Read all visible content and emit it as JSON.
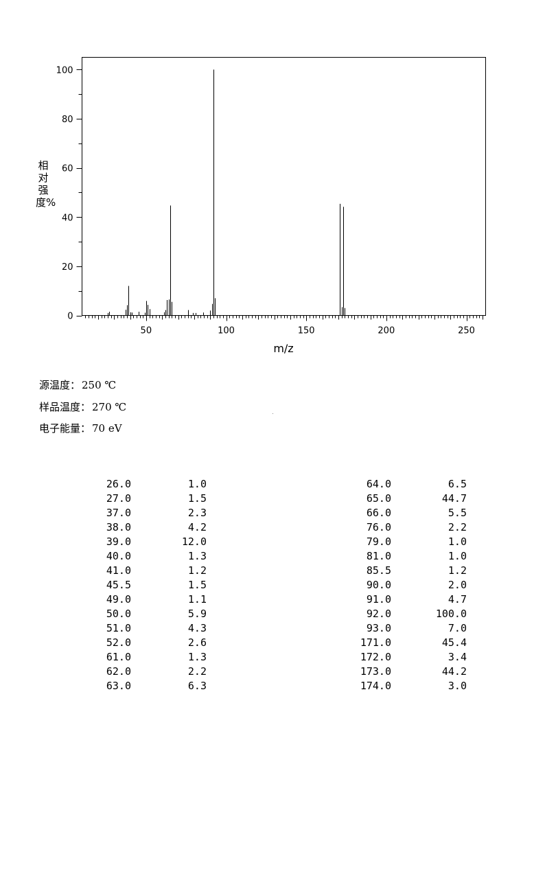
{
  "chart_data": {
    "type": "bar",
    "xlabel": "m/z",
    "ylabel": "相对强度%",
    "xlim": [
      10,
      262
    ],
    "ylim": [
      0,
      105
    ],
    "xticks": [
      50,
      100,
      150,
      200,
      250
    ],
    "yticks": [
      0,
      20,
      40,
      60,
      80,
      100
    ],
    "grid": false,
    "peaks": [
      {
        "x": 26.0,
        "y": 1.0
      },
      {
        "x": 27.0,
        "y": 1.5
      },
      {
        "x": 37.0,
        "y": 2.3
      },
      {
        "x": 38.0,
        "y": 4.2
      },
      {
        "x": 39.0,
        "y": 12.0
      },
      {
        "x": 40.0,
        "y": 1.3
      },
      {
        "x": 41.0,
        "y": 1.2
      },
      {
        "x": 45.5,
        "y": 1.5
      },
      {
        "x": 49.0,
        "y": 1.1
      },
      {
        "x": 50.0,
        "y": 5.9
      },
      {
        "x": 51.0,
        "y": 4.3
      },
      {
        "x": 52.0,
        "y": 2.6
      },
      {
        "x": 61.0,
        "y": 1.3
      },
      {
        "x": 62.0,
        "y": 2.2
      },
      {
        "x": 63.0,
        "y": 6.3
      },
      {
        "x": 64.0,
        "y": 6.5
      },
      {
        "x": 65.0,
        "y": 44.7
      },
      {
        "x": 66.0,
        "y": 5.5
      },
      {
        "x": 76.0,
        "y": 2.2
      },
      {
        "x": 79.0,
        "y": 1.0
      },
      {
        "x": 81.0,
        "y": 1.0
      },
      {
        "x": 85.5,
        "y": 1.2
      },
      {
        "x": 90.0,
        "y": 2.0
      },
      {
        "x": 91.0,
        "y": 4.7
      },
      {
        "x": 92.0,
        "y": 100.0
      },
      {
        "x": 93.0,
        "y": 7.0
      },
      {
        "x": 171.0,
        "y": 45.4
      },
      {
        "x": 172.0,
        "y": 3.4
      },
      {
        "x": 173.0,
        "y": 44.2
      },
      {
        "x": 174.0,
        "y": 3.0
      }
    ]
  },
  "conditions": [
    {
      "label": "源温度：",
      "value": "250 ℃"
    },
    {
      "label": "样品温度：",
      "value": "270 ℃"
    },
    {
      "label": "电子能量：",
      "value": "70 eV"
    }
  ],
  "peak_table": {
    "left": [
      [
        "26.0",
        "1.0"
      ],
      [
        "27.0",
        "1.5"
      ],
      [
        "37.0",
        "2.3"
      ],
      [
        "38.0",
        "4.2"
      ],
      [
        "39.0",
        "12.0"
      ],
      [
        "40.0",
        "1.3"
      ],
      [
        "41.0",
        "1.2"
      ],
      [
        "45.5",
        "1.5"
      ],
      [
        "49.0",
        "1.1"
      ],
      [
        "50.0",
        "5.9"
      ],
      [
        "51.0",
        "4.3"
      ],
      [
        "52.0",
        "2.6"
      ],
      [
        "61.0",
        "1.3"
      ],
      [
        "62.0",
        "2.2"
      ],
      [
        "63.0",
        "6.3"
      ]
    ],
    "right": [
      [
        "64.0",
        "6.5"
      ],
      [
        "65.0",
        "44.7"
      ],
      [
        "66.0",
        "5.5"
      ],
      [
        "76.0",
        "2.2"
      ],
      [
        "79.0",
        "1.0"
      ],
      [
        "81.0",
        "1.0"
      ],
      [
        "85.5",
        "1.2"
      ],
      [
        "90.0",
        "2.0"
      ],
      [
        "91.0",
        "4.7"
      ],
      [
        "92.0",
        "100.0"
      ],
      [
        "93.0",
        "7.0"
      ],
      [
        "171.0",
        "45.4"
      ],
      [
        "172.0",
        "3.4"
      ],
      [
        "173.0",
        "44.2"
      ],
      [
        "174.0",
        "3.0"
      ]
    ]
  }
}
